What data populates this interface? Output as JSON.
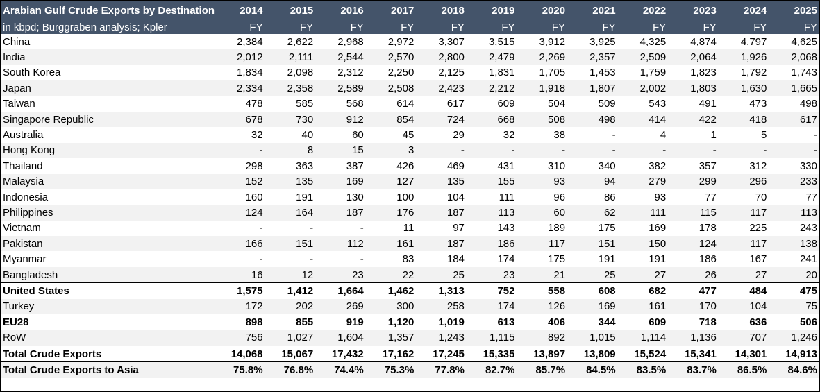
{
  "table": {
    "title": "Arabian Gulf Crude Exports by Destination",
    "subtitle": "in kbpd; Burggraben analysis; Kpler",
    "years": [
      "2014",
      "2015",
      "2016",
      "2017",
      "2018",
      "2019",
      "2020",
      "2021",
      "2022",
      "2023",
      "2024",
      "2025"
    ],
    "period": [
      "FY",
      "FY",
      "FY",
      "FY",
      "FY",
      "FY",
      "FY",
      "FY",
      "FY",
      "FY",
      "FY",
      "FY"
    ],
    "rows": [
      {
        "label": "China",
        "values": [
          "2,384",
          "2,622",
          "2,968",
          "2,972",
          "3,307",
          "3,515",
          "3,912",
          "3,925",
          "4,325",
          "4,874",
          "4,797",
          "4,625"
        ]
      },
      {
        "label": "India",
        "values": [
          "2,012",
          "2,111",
          "2,544",
          "2,570",
          "2,800",
          "2,479",
          "2,269",
          "2,357",
          "2,509",
          "2,064",
          "1,926",
          "2,068"
        ]
      },
      {
        "label": "South Korea",
        "values": [
          "1,834",
          "2,098",
          "2,312",
          "2,250",
          "2,125",
          "1,831",
          "1,705",
          "1,453",
          "1,759",
          "1,823",
          "1,792",
          "1,743"
        ]
      },
      {
        "label": "Japan",
        "values": [
          "2,334",
          "2,358",
          "2,589",
          "2,508",
          "2,423",
          "2,212",
          "1,918",
          "1,807",
          "2,002",
          "1,803",
          "1,630",
          "1,665"
        ]
      },
      {
        "label": "Taiwan",
        "values": [
          "478",
          "585",
          "568",
          "614",
          "617",
          "609",
          "504",
          "509",
          "543",
          "491",
          "473",
          "498"
        ]
      },
      {
        "label": "Singapore Republic",
        "values": [
          "678",
          "730",
          "912",
          "854",
          "724",
          "668",
          "508",
          "498",
          "414",
          "422",
          "418",
          "617"
        ]
      },
      {
        "label": "Australia",
        "values": [
          "32",
          "40",
          "60",
          "45",
          "29",
          "32",
          "38",
          "-",
          "4",
          "1",
          "5",
          "-"
        ]
      },
      {
        "label": "Hong Kong",
        "values": [
          "-",
          "8",
          "15",
          "3",
          "-",
          "-",
          "-",
          "-",
          "-",
          "-",
          "-",
          "-"
        ]
      },
      {
        "label": "Thailand",
        "values": [
          "298",
          "363",
          "387",
          "426",
          "469",
          "431",
          "310",
          "340",
          "382",
          "357",
          "312",
          "330"
        ]
      },
      {
        "label": "Malaysia",
        "values": [
          "152",
          "135",
          "169",
          "127",
          "135",
          "155",
          "93",
          "94",
          "279",
          "299",
          "296",
          "233"
        ]
      },
      {
        "label": "Indonesia",
        "values": [
          "160",
          "191",
          "130",
          "100",
          "104",
          "111",
          "96",
          "86",
          "93",
          "77",
          "70",
          "77"
        ]
      },
      {
        "label": "Philippines",
        "values": [
          "124",
          "164",
          "187",
          "176",
          "187",
          "113",
          "60",
          "62",
          "111",
          "115",
          "117",
          "113"
        ]
      },
      {
        "label": "Vietnam",
        "values": [
          "-",
          "-",
          "-",
          "11",
          "97",
          "143",
          "189",
          "175",
          "169",
          "178",
          "225",
          "243"
        ]
      },
      {
        "label": "Pakistan",
        "values": [
          "166",
          "151",
          "112",
          "161",
          "187",
          "186",
          "117",
          "151",
          "150",
          "124",
          "117",
          "138"
        ]
      },
      {
        "label": "Myanmar",
        "values": [
          "-",
          "-",
          "-",
          "83",
          "184",
          "174",
          "175",
          "191",
          "191",
          "186",
          "167",
          "241"
        ]
      },
      {
        "label": "Bangladesh",
        "values": [
          "16",
          "12",
          "23",
          "22",
          "25",
          "23",
          "21",
          "25",
          "27",
          "26",
          "27",
          "20"
        ]
      },
      {
        "label": "United States",
        "values": [
          "1,575",
          "1,412",
          "1,664",
          "1,462",
          "1,313",
          "752",
          "558",
          "608",
          "682",
          "477",
          "484",
          "475"
        ]
      },
      {
        "label": "Turkey",
        "values": [
          "172",
          "202",
          "269",
          "300",
          "258",
          "174",
          "126",
          "169",
          "161",
          "170",
          "104",
          "75"
        ]
      },
      {
        "label": "EU28",
        "values": [
          "898",
          "855",
          "919",
          "1,120",
          "1,019",
          "613",
          "406",
          "344",
          "609",
          "718",
          "636",
          "506"
        ]
      },
      {
        "label": "RoW",
        "values": [
          "756",
          "1,027",
          "1,604",
          "1,357",
          "1,243",
          "1,115",
          "892",
          "1,015",
          "1,114",
          "1,136",
          "707",
          "1,246"
        ]
      },
      {
        "label": "Total Crude Exports",
        "values": [
          "14,068",
          "15,067",
          "17,432",
          "17,162",
          "17,245",
          "15,335",
          "13,897",
          "13,809",
          "15,524",
          "15,341",
          "14,301",
          "14,913"
        ]
      },
      {
        "label": "Total Crude Exports to Asia",
        "values": [
          "75.8%",
          "76.8%",
          "74.4%",
          "75.3%",
          "77.8%",
          "82.7%",
          "85.7%",
          "84.5%",
          "83.5%",
          "83.7%",
          "86.5%",
          "84.6%"
        ]
      }
    ]
  }
}
